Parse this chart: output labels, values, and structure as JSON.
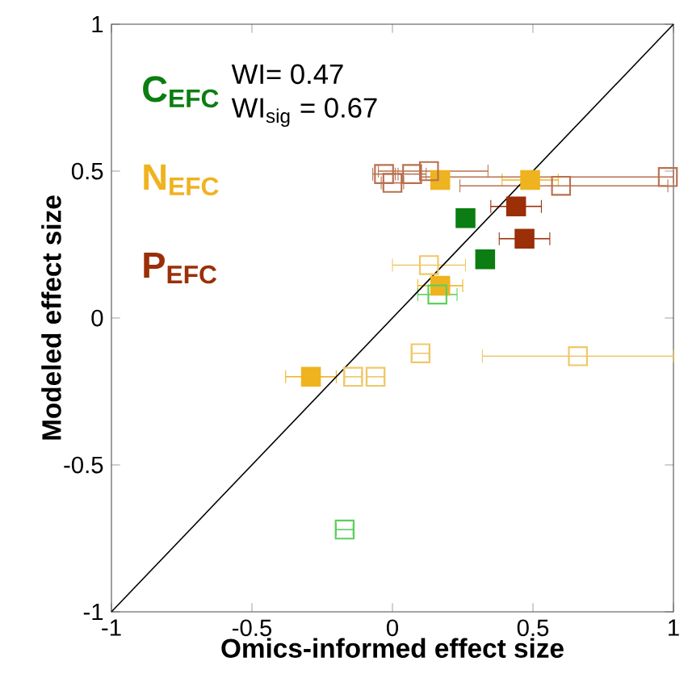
{
  "chart_data": {
    "type": "scatter",
    "xlabel": "Omics-informed effect size",
    "ylabel": "Modeled effect size",
    "xlim": [
      -1,
      1
    ],
    "ylim": [
      -1,
      1
    ],
    "xticks": [
      -1,
      -0.5,
      0,
      0.5,
      1
    ],
    "yticks": [
      -1,
      -0.5,
      0,
      0.5,
      1
    ],
    "marker": "square",
    "grid": false,
    "legend": "top left",
    "annotations": [
      "WI= 0.47",
      "WI$_{sig}$ = 0.67"
    ],
    "series": [
      {
        "name": "C$_{EFC}$",
        "color": "#0b7d12",
        "x": [
          0.26,
          0.33
        ],
        "values": [
          0.34,
          0.2
        ],
        "xerrors": [
          null,
          0.03
        ]
      },
      {
        "name": "N$_{EFC}$",
        "color": "#efb31f",
        "x": [
          0.17,
          0.49,
          0.17,
          -0.29
        ],
        "values": [
          0.47,
          0.47,
          0.11,
          -0.2
        ],
        "xerrors": [
          null,
          0.1,
          0.08,
          0.09
        ]
      },
      {
        "name": "P$_{EFC}$",
        "color": "#9a2f08",
        "x": [
          0.44,
          0.47
        ],
        "values": [
          0.38,
          0.27
        ],
        "xerrors": [
          0.09,
          0.09
        ]
      },
      {
        "color": "#5ccf5c",
        "x": [
          0.16,
          -0.17
        ],
        "values": [
          0.08,
          -0.72
        ],
        "xerrors": [
          0.07,
          0.03
        ]
      },
      {
        "color": "#efc766",
        "x": [
          0.13,
          -0.14,
          -0.06,
          0.1,
          0.66
        ],
        "values": [
          0.18,
          -0.2,
          -0.2,
          -0.12,
          -0.13
        ],
        "xerrors": [
          0.13,
          0.03,
          0.03,
          0.03,
          [
            0.32,
            1.0
          ]
        ]
      },
      {
        "color": "#b8704f",
        "x": [
          -0.03,
          0.0,
          0.07,
          0.13,
          0.6,
          0.98
        ],
        "values": [
          0.49,
          0.46,
          0.49,
          0.5,
          0.45,
          0.48
        ],
        "xerrors": [
          0.04,
          0.04,
          0.05,
          [
            -0.05,
            0.34
          ],
          [
            0.24,
            0.98
          ],
          [
            0.1,
            1.0
          ]
        ]
      },
      {
        "type": "line",
        "marker": "none",
        "color": "#000000",
        "x": [
          -1,
          1
        ],
        "values": [
          -1,
          1
        ]
      }
    ]
  }
}
